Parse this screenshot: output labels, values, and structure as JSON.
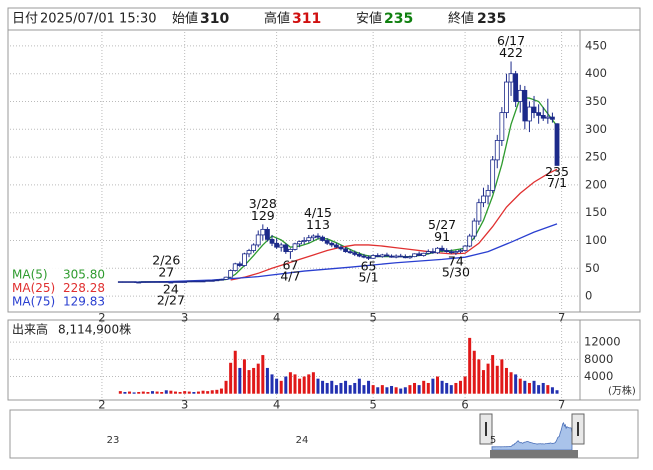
{
  "header": {
    "date_label": "日付",
    "date": "2025/07/01 15:30",
    "open_label": "始値",
    "open": 310,
    "high_label": "高値",
    "high": 311,
    "low_label": "安値",
    "low": 235,
    "close_label": "終値",
    "close": 235
  },
  "chart_data": {
    "type": "candlestick",
    "xlim": [
      -24,
      100
    ],
    "xticks": [
      {
        "value": -4,
        "label": "2"
      },
      {
        "value": 14,
        "label": "3"
      },
      {
        "value": 34,
        "label": "4"
      },
      {
        "value": 55,
        "label": "5"
      },
      {
        "value": 75,
        "label": "6"
      },
      {
        "value": 96,
        "label": "7"
      }
    ],
    "ylim": [
      -25,
      475
    ],
    "yticks": [
      0,
      50,
      100,
      150,
      200,
      250,
      300,
      350,
      400,
      450
    ],
    "grid": true,
    "up_color": "#ffffff",
    "down_color": "#1c2a8a",
    "edge_color": "#1c2a8a",
    "open": [
      25,
      26,
      25,
      26,
      25,
      25,
      26,
      26,
      25,
      26,
      26,
      25,
      25,
      26,
      26,
      26,
      27,
      26,
      27,
      27,
      28,
      28,
      29,
      30,
      34,
      46,
      58,
      55,
      76,
      82,
      92,
      110,
      120,
      102,
      95,
      88,
      92,
      80,
      84,
      94,
      98,
      100,
      105,
      108,
      106,
      100,
      95,
      92,
      88,
      85,
      80,
      78,
      75,
      72,
      70,
      68,
      73,
      71,
      74,
      72,
      70,
      72,
      71,
      69,
      71,
      76,
      73,
      77,
      80,
      78,
      86,
      82,
      80,
      78,
      80,
      82,
      90,
      108,
      135,
      168,
      180,
      190,
      245,
      280,
      330,
      385,
      400,
      350,
      370,
      315,
      340,
      330,
      325,
      320,
      322,
      310
    ],
    "high": [
      26,
      26,
      26,
      26,
      26,
      26,
      26,
      26,
      26,
      26,
      27,
      26,
      26,
      26,
      27,
      27,
      27,
      27,
      28,
      28,
      29,
      30,
      31,
      35,
      48,
      60,
      62,
      78,
      85,
      95,
      118,
      129,
      124,
      110,
      104,
      96,
      95,
      86,
      96,
      100,
      106,
      110,
      111,
      113,
      109,
      104,
      98,
      96,
      92,
      88,
      84,
      82,
      79,
      76,
      73,
      75,
      77,
      76,
      78,
      75,
      75,
      76,
      75,
      73,
      77,
      80,
      78,
      84,
      86,
      88,
      91,
      86,
      84,
      82,
      85,
      92,
      112,
      140,
      175,
      195,
      200,
      252,
      290,
      340,
      400,
      422,
      405,
      380,
      378,
      350,
      360,
      345,
      340,
      355,
      330,
      311
    ],
    "low": [
      25,
      25,
      25,
      25,
      25,
      25,
      25,
      25,
      25,
      25,
      25,
      24,
      25,
      25,
      26,
      26,
      26,
      26,
      26,
      27,
      27,
      28,
      28,
      29,
      33,
      44,
      52,
      53,
      70,
      78,
      88,
      100,
      98,
      90,
      85,
      80,
      76,
      67,
      82,
      88,
      93,
      96,
      100,
      102,
      98,
      92,
      88,
      86,
      82,
      78,
      76,
      72,
      70,
      68,
      65,
      67,
      70,
      69,
      71,
      69,
      68,
      70,
      68,
      67,
      70,
      72,
      71,
      75,
      76,
      76,
      79,
      78,
      76,
      74,
      77,
      80,
      88,
      102,
      128,
      160,
      165,
      185,
      230,
      270,
      320,
      360,
      340,
      330,
      300,
      295,
      320,
      310,
      315,
      310,
      312,
      235
    ],
    "close": [
      26,
      25,
      26,
      25,
      25,
      26,
      26,
      25,
      26,
      26,
      25,
      25,
      26,
      26,
      26,
      27,
      26,
      27,
      27,
      28,
      28,
      29,
      30,
      34,
      46,
      58,
      55,
      76,
      82,
      92,
      110,
      120,
      102,
      95,
      88,
      92,
      80,
      84,
      94,
      98,
      100,
      105,
      108,
      106,
      100,
      95,
      92,
      88,
      85,
      80,
      78,
      75,
      72,
      70,
      68,
      73,
      71,
      74,
      72,
      70,
      72,
      71,
      69,
      71,
      76,
      73,
      77,
      80,
      78,
      86,
      82,
      80,
      78,
      80,
      82,
      90,
      108,
      135,
      168,
      180,
      190,
      245,
      280,
      330,
      385,
      400,
      350,
      370,
      315,
      340,
      330,
      325,
      320,
      322,
      318,
      235
    ],
    "series": [
      {
        "name": "MA(5)",
        "color": "#2e9b2e",
        "legend_label": "305.80",
        "x": [
          4,
          10,
          15,
          20,
          23,
          25,
          27,
          29,
          31,
          33,
          35,
          37,
          39,
          41,
          43,
          45,
          47,
          49,
          51,
          53,
          55,
          57,
          60,
          63,
          66,
          69,
          72,
          75,
          77,
          79,
          81,
          83,
          85,
          87,
          89,
          91,
          93,
          95
        ],
        "values": [
          25.5,
          25.6,
          26.3,
          27.6,
          29.8,
          39,
          55,
          73,
          92,
          108,
          101,
          88,
          90,
          95,
          103,
          103,
          96,
          88,
          80,
          74,
          71,
          71,
          71,
          71,
          74,
          80,
          82,
          86,
          105,
          136,
          180,
          237,
          309,
          357,
          356,
          350,
          328,
          305.8
        ]
      },
      {
        "name": "MA(25)",
        "color": "#e03030",
        "legend_label": "228.28",
        "x": [
          24,
          27,
          30,
          33,
          36,
          39,
          42,
          45,
          48,
          51,
          54,
          57,
          60,
          63,
          66,
          69,
          72,
          75,
          78,
          81,
          84,
          87,
          90,
          93,
          95
        ],
        "values": [
          29,
          34,
          41,
          50,
          58,
          66,
          74,
          82,
          88,
          92,
          92,
          90,
          87,
          84,
          81,
          78,
          76,
          77,
          95,
          125,
          160,
          185,
          205,
          220,
          228.28
        ]
      },
      {
        "name": "MA(75)",
        "color": "#2a3fd0",
        "legend_label": "129.83",
        "x": [
          3,
          10,
          20,
          30,
          40,
          50,
          60,
          70,
          75,
          80,
          85,
          90,
          95
        ],
        "values": [
          25,
          26,
          29,
          35,
          45,
          52,
          60,
          66,
          70,
          80,
          97,
          115,
          129.83
        ]
      }
    ],
    "annotations": [
      {
        "date": "2/26",
        "price": 27
      },
      {
        "date": "2/27",
        "price": 24
      },
      {
        "date": "3/28",
        "price": 129
      },
      {
        "date": "4/7",
        "price": 67
      },
      {
        "date": "4/15",
        "price": 113
      },
      {
        "date": "5/1",
        "price": 65
      },
      {
        "date": "5/27",
        "price": 91
      },
      {
        "date": "5/30",
        "price": 74
      },
      {
        "date": "6/17",
        "price": 422
      },
      {
        "date": "7/1",
        "price": 235
      }
    ],
    "volume": {
      "title": "出来高",
      "total": "8,114,900株",
      "unit_label": "(万株)",
      "up_color": "#e01818",
      "down_color": "#2230b0",
      "ylim": [
        -1000,
        16700
      ],
      "yticks": [
        4000,
        8000,
        12000
      ],
      "values": [
        600,
        400,
        500,
        300,
        400,
        500,
        400,
        600,
        500,
        400,
        800,
        700,
        500,
        400,
        600,
        500,
        400,
        500,
        700,
        600,
        800,
        900,
        1200,
        3000,
        7200,
        10000,
        6000,
        8000,
        5500,
        6000,
        7000,
        9000,
        6000,
        4500,
        3500,
        3000,
        4000,
        5000,
        4500,
        3500,
        4000,
        4500,
        5000,
        3500,
        3000,
        2500,
        3000,
        2000,
        2500,
        3000,
        2000,
        2500,
        3500,
        2000,
        3000,
        2000,
        1500,
        2000,
        1500,
        1800,
        1500,
        1200,
        1500,
        2000,
        2500,
        2000,
        3000,
        2500,
        3500,
        4000,
        3000,
        2500,
        2000,
        2500,
        3000,
        4000,
        13000,
        10000,
        8000,
        5500,
        7000,
        9000,
        6500,
        8000,
        6000,
        5000,
        4500,
        3500,
        3000,
        2500,
        3000,
        2000,
        2500,
        2000,
        1500,
        811
      ]
    },
    "navigator": {
      "labels": [
        "23",
        "24",
        "5"
      ],
      "color": "#a9c3ea"
    }
  }
}
